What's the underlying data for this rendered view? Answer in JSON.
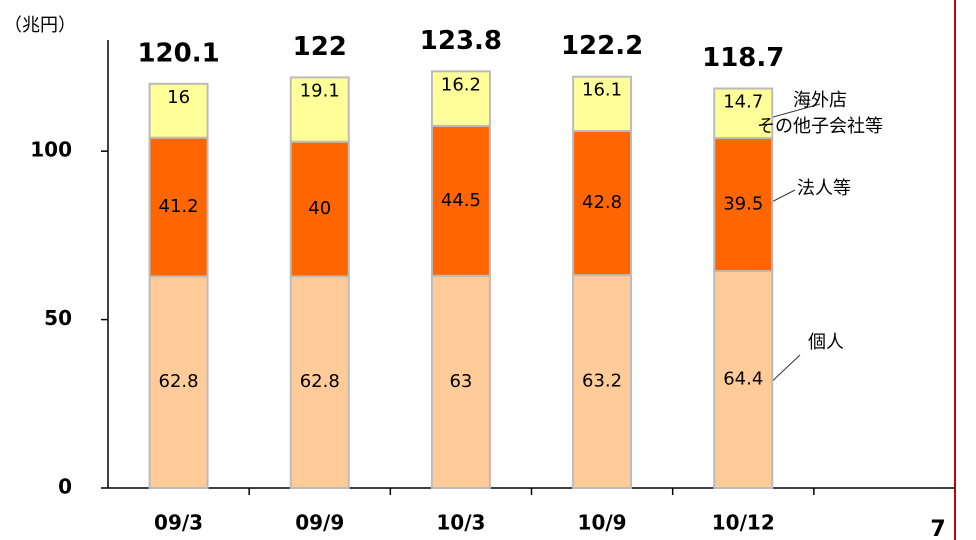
{
  "chart_data": {
    "type": "stacked_bar",
    "unit_label": "（兆円）",
    "categories": [
      "09/3",
      "09/9",
      "10/3",
      "10/9",
      "10/12",
      null
    ],
    "series": [
      {
        "name": "個人",
        "color": "#ffcc99",
        "values": [
          62.8,
          62.8,
          63.0,
          63.2,
          64.4,
          null
        ]
      },
      {
        "name": "法人等",
        "color": "#ff6600",
        "values": [
          41.2,
          40.0,
          44.5,
          42.8,
          39.5,
          null
        ]
      },
      {
        "name": "海外店\nその他子会社等",
        "color": "#ffff99",
        "values": [
          16.0,
          19.1,
          16.2,
          16.1,
          14.7,
          null
        ]
      }
    ],
    "totals": [
      120.1,
      122.0,
      123.8,
      122.2,
      118.7,
      null
    ],
    "ylim": [
      0,
      133
    ],
    "yticks": [
      0,
      50,
      100
    ],
    "page_number": "7"
  }
}
